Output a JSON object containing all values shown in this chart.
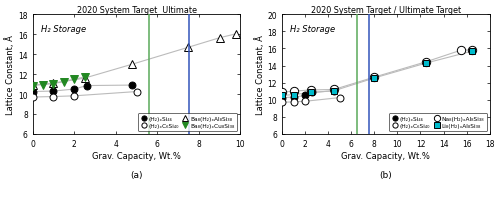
{
  "panel_a": {
    "title": "2020 System Target  Ultimate",
    "xlabel": "Grav. Capacity, Wt.%",
    "ylabel": "Lattice Constant, Å",
    "xlim": [
      0,
      10
    ],
    "ylim": [
      6,
      18
    ],
    "yticks": [
      6,
      8,
      10,
      12,
      14,
      16,
      18
    ],
    "xticks": [
      0,
      2,
      4,
      6,
      8,
      10
    ],
    "vline1": 5.6,
    "vline2": 7.55,
    "vline1_color": "#5aaa5a",
    "vline2_color": "#3355bb",
    "annotation": "H₂ Storage",
    "series": {
      "H2_Si46": {
        "x": [
          0,
          1.0,
          2.0,
          2.6,
          4.8
        ],
        "y": [
          10.25,
          10.3,
          10.5,
          10.85,
          10.9
        ],
        "marker": "o",
        "color": "#000000",
        "mfc": "#000000",
        "mec": "#000000",
        "ms": 5,
        "label": "(H₂)ₓSi₄₆",
        "lw": 0.8
      },
      "H2_C6Si40": {
        "x": [
          0,
          1.0,
          2.0,
          5.0
        ],
        "y": [
          9.7,
          9.75,
          9.82,
          10.25
        ],
        "marker": "o",
        "color": "#000000",
        "mfc": "#ffffff",
        "mec": "#000000",
        "ms": 5,
        "label": "(H₂)ₓC₆Si₄₀",
        "lw": 0.8
      },
      "Ba8_Al8_Si38": {
        "x": [
          0,
          1.0,
          2.5,
          4.8,
          7.5,
          9.0,
          9.8
        ],
        "y": [
          10.9,
          11.1,
          11.6,
          13.0,
          14.7,
          15.65,
          16.05
        ],
        "marker": "^",
        "color": "#000000",
        "mfc": "#ffffff",
        "mec": "#000000",
        "ms": 6,
        "label": "Ba₈(H₂)ₓAl₈Si₃₈",
        "lw": 0.8
      },
      "Ba8_Cu8_Si38": {
        "x": [
          0,
          0.5,
          1.0,
          1.5,
          2.0,
          2.5
        ],
        "y": [
          10.85,
          10.95,
          11.05,
          11.25,
          11.5,
          11.7
        ],
        "marker": "v",
        "color": "#228822",
        "mfc": "#228822",
        "mec": "#228822",
        "ms": 6,
        "label": "Ba₈(H₂)ₓCu₈Si₃₈",
        "lw": 0.8
      }
    }
  },
  "panel_b": {
    "title": "2020 System Target / Ultimate Target",
    "xlabel": "Grav. Capacity, Wt.%",
    "ylabel": "Lattice Constant, Å",
    "xlim": [
      0,
      18
    ],
    "ylim": [
      6,
      20
    ],
    "yticks": [
      6,
      8,
      10,
      12,
      14,
      16,
      18,
      20
    ],
    "xticks": [
      0,
      2,
      4,
      6,
      8,
      10,
      12,
      14,
      16,
      18
    ],
    "vline1": 6.5,
    "vline2": 7.55,
    "vline1_color": "#5aaa5a",
    "vline2_color": "#3355bb",
    "annotation": "H₂ Storage",
    "series": {
      "H2_Si46": {
        "x": [
          0,
          1.0,
          2.0,
          2.6,
          4.5
        ],
        "y": [
          10.25,
          10.3,
          10.5,
          10.85,
          11.05
        ],
        "marker": "o",
        "color": "#000000",
        "mfc": "#000000",
        "mec": "#000000",
        "ms": 5,
        "label": "(H₂)ₓSi₄₆",
        "lw": 0.8
      },
      "H2_C6Si40": {
        "x": [
          0,
          1.0,
          2.0,
          5.0
        ],
        "y": [
          9.7,
          9.75,
          9.82,
          10.25
        ],
        "marker": "o",
        "color": "#000000",
        "mfc": "#ffffff",
        "mec": "#000000",
        "ms": 5,
        "label": "(H₂)ₓC₆Si₄₀",
        "lw": 0.8
      },
      "Na8_Al8_Si38": {
        "x": [
          0,
          1.0,
          2.5,
          4.5,
          8.0,
          12.5,
          15.5,
          16.5
        ],
        "y": [
          10.9,
          11.0,
          11.15,
          11.2,
          12.65,
          14.45,
          15.8,
          15.85
        ],
        "marker": "o",
        "color": "#000000",
        "mfc": "#ffffff",
        "mec": "#000000",
        "ms": 6,
        "label": "Na₈(H₂)ₓAl₈Si₃₈",
        "lw": 0.8
      },
      "Li8_Al8_Si38": {
        "x": [
          0,
          1.0,
          2.5,
          4.5,
          8.0,
          12.5,
          16.5
        ],
        "y": [
          10.5,
          10.6,
          10.85,
          11.05,
          12.55,
          14.3,
          15.7
        ],
        "marker": "s",
        "color": "#00bbcc",
        "mfc": "#00bbcc",
        "mec": "#000000",
        "ms": 5,
        "label": "Li₈(H₂)ₓAl₈Si₃₈",
        "lw": 0.8
      }
    }
  },
  "line_color": "#bbbbbb",
  "fig_width": 5.0,
  "fig_height": 2.05,
  "dpi": 100
}
